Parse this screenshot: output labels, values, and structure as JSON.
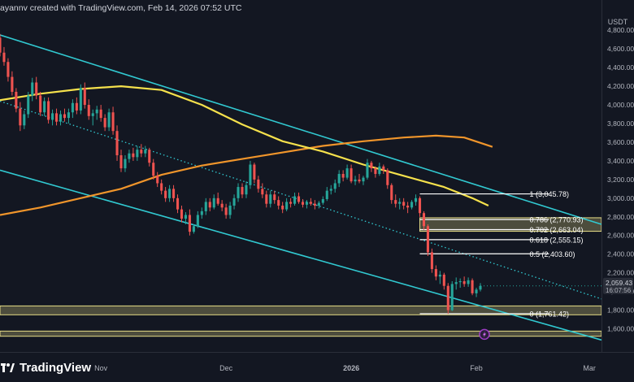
{
  "header": {
    "credit": "ayannv created with TradingView.com, Feb 14, 2026 07:52 UTC"
  },
  "brand": {
    "name": "TradingView",
    "logo_icon": "tradingview-logo-icon"
  },
  "chart_data": {
    "type": "candlestick",
    "y_axis_unit": "USDT",
    "ylim": [
      1500,
      4950
    ],
    "y_ticks": [
      1600,
      1800,
      2000,
      2200,
      2400,
      2600,
      2800,
      3000,
      3200,
      3400,
      3600,
      3800,
      4000,
      4200,
      4400,
      4600,
      4800
    ],
    "y_tick_labels": [
      "1,600.00",
      "1,800.00",
      "2,000.00",
      "2,200.00",
      "2,400.00",
      "2,600.00",
      "2,800.00",
      "3,000.00",
      "3,200.00",
      "3,400.00",
      "3,600.00",
      "3,800.00",
      "4,000.00",
      "4,200.00",
      "4,400.00",
      "4,600.00",
      "4,800.00"
    ],
    "x_range": [
      0,
      149
    ],
    "x_ticks": [
      {
        "x": 25,
        "label": "Nov"
      },
      {
        "x": 56,
        "label": "Dec"
      },
      {
        "x": 87,
        "label": "2026"
      },
      {
        "x": 118,
        "label": "Feb"
      },
      {
        "x": 146,
        "label": "Mar"
      }
    ],
    "price_label": {
      "value": "2,059.43",
      "countdown": "16:07:56",
      "price": 2059.43
    },
    "colors": {
      "up": "#26a69a",
      "down": "#ef5350",
      "ma_short": "#f5e14c",
      "ma_long": "#f0952b",
      "channel": "#31c9d1",
      "fib_line": "#ffffff",
      "zone": "#e6dc86",
      "background": "#131722",
      "text": "#b2b5be"
    },
    "candles": [
      [
        4720,
        4760,
        4520,
        4560
      ],
      [
        4560,
        4620,
        4420,
        4460
      ],
      [
        4460,
        4500,
        4250,
        4300
      ],
      [
        4300,
        4360,
        4100,
        4140
      ],
      [
        4140,
        4180,
        3920,
        3960
      ],
      [
        3960,
        4030,
        3720,
        3780
      ],
      [
        3780,
        3940,
        3740,
        3900
      ],
      [
        3900,
        4140,
        3860,
        4100
      ],
      [
        4100,
        4290,
        4040,
        4240
      ],
      [
        4240,
        4300,
        4060,
        4100
      ],
      [
        4100,
        4140,
        3880,
        3920
      ],
      [
        3920,
        4080,
        3880,
        4040
      ],
      [
        4040,
        4080,
        3800,
        3840
      ],
      [
        3840,
        3950,
        3780,
        3910
      ],
      [
        3910,
        3960,
        3780,
        3820
      ],
      [
        3820,
        3940,
        3780,
        3900
      ],
      [
        3900,
        3960,
        3820,
        3860
      ],
      [
        3860,
        3960,
        3800,
        3920
      ],
      [
        3920,
        4060,
        3860,
        4020
      ],
      [
        4020,
        4080,
        3900,
        3940
      ],
      [
        3940,
        4220,
        3900,
        4180
      ],
      [
        4180,
        4240,
        3960,
        4000
      ],
      [
        4000,
        4060,
        3840,
        3880
      ],
      [
        3880,
        3950,
        3780,
        3910
      ],
      [
        3910,
        3990,
        3840,
        3950
      ],
      [
        3950,
        4000,
        3820,
        3860
      ],
      [
        3860,
        3900,
        3720,
        3760
      ],
      [
        3760,
        3960,
        3720,
        3920
      ],
      [
        3920,
        3980,
        3680,
        3720
      ],
      [
        3720,
        3780,
        3400,
        3460
      ],
      [
        3460,
        3520,
        3280,
        3320
      ],
      [
        3320,
        3460,
        3280,
        3420
      ],
      [
        3420,
        3520,
        3380,
        3480
      ],
      [
        3480,
        3540,
        3400,
        3440
      ],
      [
        3440,
        3560,
        3400,
        3520
      ],
      [
        3520,
        3580,
        3440,
        3480
      ],
      [
        3480,
        3560,
        3440,
        3520
      ],
      [
        3520,
        3540,
        3340,
        3380
      ],
      [
        3380,
        3420,
        3200,
        3240
      ],
      [
        3240,
        3280,
        3120,
        3160
      ],
      [
        3160,
        3200,
        3040,
        3080
      ],
      [
        3080,
        3120,
        2960,
        3000
      ],
      [
        3000,
        3140,
        2960,
        3100
      ],
      [
        3100,
        3140,
        2960,
        3000
      ],
      [
        3000,
        3040,
        2840,
        2880
      ],
      [
        2880,
        2920,
        2740,
        2780
      ],
      [
        2780,
        2850,
        2720,
        2820
      ],
      [
        2820,
        2880,
        2600,
        2640
      ],
      [
        2640,
        2720,
        2620,
        2700
      ],
      [
        2700,
        2860,
        2680,
        2820
      ],
      [
        2820,
        2900,
        2780,
        2860
      ],
      [
        2860,
        3000,
        2820,
        2960
      ],
      [
        2960,
        3000,
        2860,
        2900
      ],
      [
        2900,
        3040,
        2880,
        3000
      ],
      [
        3000,
        3060,
        2920,
        2940
      ],
      [
        2940,
        2980,
        2860,
        2900
      ],
      [
        2900,
        2940,
        2780,
        2820
      ],
      [
        2820,
        2960,
        2780,
        2920
      ],
      [
        2920,
        3040,
        2880,
        3000
      ],
      [
        3000,
        3160,
        2960,
        3120
      ],
      [
        3120,
        3160,
        3000,
        3040
      ],
      [
        3040,
        3180,
        3000,
        3140
      ],
      [
        3140,
        3400,
        3100,
        3360
      ],
      [
        3360,
        3380,
        3160,
        3200
      ],
      [
        3200,
        3240,
        3060,
        3100
      ],
      [
        3100,
        3160,
        3000,
        3040
      ],
      [
        3040,
        3080,
        2900,
        2940
      ],
      [
        2940,
        3080,
        2900,
        3040
      ],
      [
        3040,
        3080,
        2940,
        2980
      ],
      [
        2980,
        3020,
        2880,
        2920
      ],
      [
        2920,
        2960,
        2840,
        2880
      ],
      [
        2880,
        3000,
        2860,
        2960
      ],
      [
        2960,
        3000,
        2900,
        2940
      ],
      [
        2940,
        3060,
        2920,
        3020
      ],
      [
        3020,
        3060,
        2940,
        2960
      ],
      [
        2960,
        2990,
        2900,
        2930
      ],
      [
        2930,
        2980,
        2890,
        2960
      ],
      [
        2960,
        3000,
        2920,
        2940
      ],
      [
        2940,
        2980,
        2880,
        2920
      ],
      [
        2920,
        2970,
        2890,
        2950
      ],
      [
        2950,
        3020,
        2930,
        2990
      ],
      [
        2990,
        3120,
        2970,
        3080
      ],
      [
        3080,
        3140,
        3040,
        3100
      ],
      [
        3100,
        3200,
        3060,
        3160
      ],
      [
        3160,
        3300,
        3120,
        3260
      ],
      [
        3260,
        3300,
        3180,
        3220
      ],
      [
        3220,
        3360,
        3200,
        3320
      ],
      [
        3320,
        3360,
        3160,
        3180
      ],
      [
        3180,
        3240,
        3140,
        3200
      ],
      [
        3200,
        3260,
        3160,
        3180
      ],
      [
        3180,
        3240,
        3140,
        3220
      ],
      [
        3220,
        3420,
        3200,
        3380
      ],
      [
        3380,
        3400,
        3280,
        3320
      ],
      [
        3320,
        3340,
        3220,
        3260
      ],
      [
        3260,
        3380,
        3240,
        3340
      ],
      [
        3340,
        3360,
        3260,
        3300
      ],
      [
        3300,
        3320,
        3100,
        3140
      ],
      [
        3140,
        3160,
        2940,
        2980
      ],
      [
        2980,
        3040,
        2900,
        2940
      ],
      [
        2940,
        3000,
        2880,
        2960
      ],
      [
        2960,
        3000,
        2880,
        2920
      ],
      [
        2920,
        2960,
        2840,
        2900
      ],
      [
        2900,
        2980,
        2880,
        2960
      ],
      [
        2960,
        3040,
        2920,
        3000
      ],
      [
        3000,
        3020,
        2800,
        2840
      ],
      [
        2840,
        2860,
        2660,
        2700
      ],
      [
        2700,
        2720,
        2380,
        2420
      ],
      [
        2420,
        2460,
        2200,
        2240
      ],
      [
        2240,
        2280,
        2120,
        2160
      ],
      [
        2160,
        2220,
        2080,
        2180
      ],
      [
        2180,
        2200,
        2020,
        2060
      ],
      [
        2060,
        2090,
        1760,
        1800
      ],
      [
        1800,
        2110,
        1790,
        2080
      ],
      [
        2080,
        2150,
        2020,
        2100
      ],
      [
        2100,
        2140,
        2040,
        2110
      ],
      [
        2110,
        2160,
        2050,
        2080
      ],
      [
        2080,
        2150,
        2050,
        2120
      ],
      [
        2120,
        2140,
        1960,
        1980
      ],
      [
        1980,
        2040,
        1940,
        2020
      ],
      [
        2020,
        2090,
        2000,
        2059.43
      ]
    ],
    "sma_short": [
      [
        0,
        4050
      ],
      [
        10,
        4120
      ],
      [
        20,
        4170
      ],
      [
        30,
        4200
      ],
      [
        40,
        4160
      ],
      [
        50,
        4000
      ],
      [
        60,
        3790
      ],
      [
        70,
        3610
      ],
      [
        80,
        3500
      ],
      [
        90,
        3360
      ],
      [
        100,
        3240
      ],
      [
        110,
        3120
      ],
      [
        117,
        3000
      ],
      [
        121,
        2920
      ]
    ],
    "ema_long": [
      [
        0,
        2820
      ],
      [
        10,
        2900
      ],
      [
        20,
        3000
      ],
      [
        30,
        3100
      ],
      [
        40,
        3250
      ],
      [
        50,
        3350
      ],
      [
        60,
        3420
      ],
      [
        70,
        3490
      ],
      [
        80,
        3560
      ],
      [
        90,
        3610
      ],
      [
        100,
        3650
      ],
      [
        108,
        3670
      ],
      [
        115,
        3650
      ],
      [
        122,
        3550
      ]
    ],
    "channel": {
      "upper": [
        [
          0,
          4750
        ],
        [
          149,
          2720
        ]
      ],
      "lower": [
        [
          0,
          3300
        ],
        [
          149,
          1480
        ]
      ],
      "mid_dotted": [
        [
          0,
          4040
        ],
        [
          149,
          1920
        ]
      ]
    },
    "fibonacci": {
      "x_start": 104,
      "x_end": 136,
      "levels": [
        {
          "ratio": "1",
          "price": 3045.78,
          "label": "1 (3,045.78)"
        },
        {
          "ratio": "0.786",
          "price": 2770.93,
          "label": "0.786 (2,770.93)"
        },
        {
          "ratio": "0.702",
          "price": 2663.04,
          "label": "0.702 (2,663.04)"
        },
        {
          "ratio": "0.618",
          "price": 2555.15,
          "label": "0.618 (2,555.15)"
        },
        {
          "ratio": "0.5",
          "price": 2403.6,
          "label": "0.5 (2,403.60)"
        },
        {
          "ratio": "0",
          "price": 1761.42,
          "label": "0 (1,761.42)"
        }
      ]
    },
    "zones": [
      {
        "top": 2790,
        "bottom": 2645,
        "x_from": 104
      },
      {
        "top": 1845,
        "bottom": 1750,
        "x_from": 0
      },
      {
        "top": 1575,
        "bottom": 1520,
        "x_from": 0
      }
    ],
    "marker": {
      "x": 120,
      "price": 1540,
      "icon": "lightning-event-icon"
    }
  }
}
